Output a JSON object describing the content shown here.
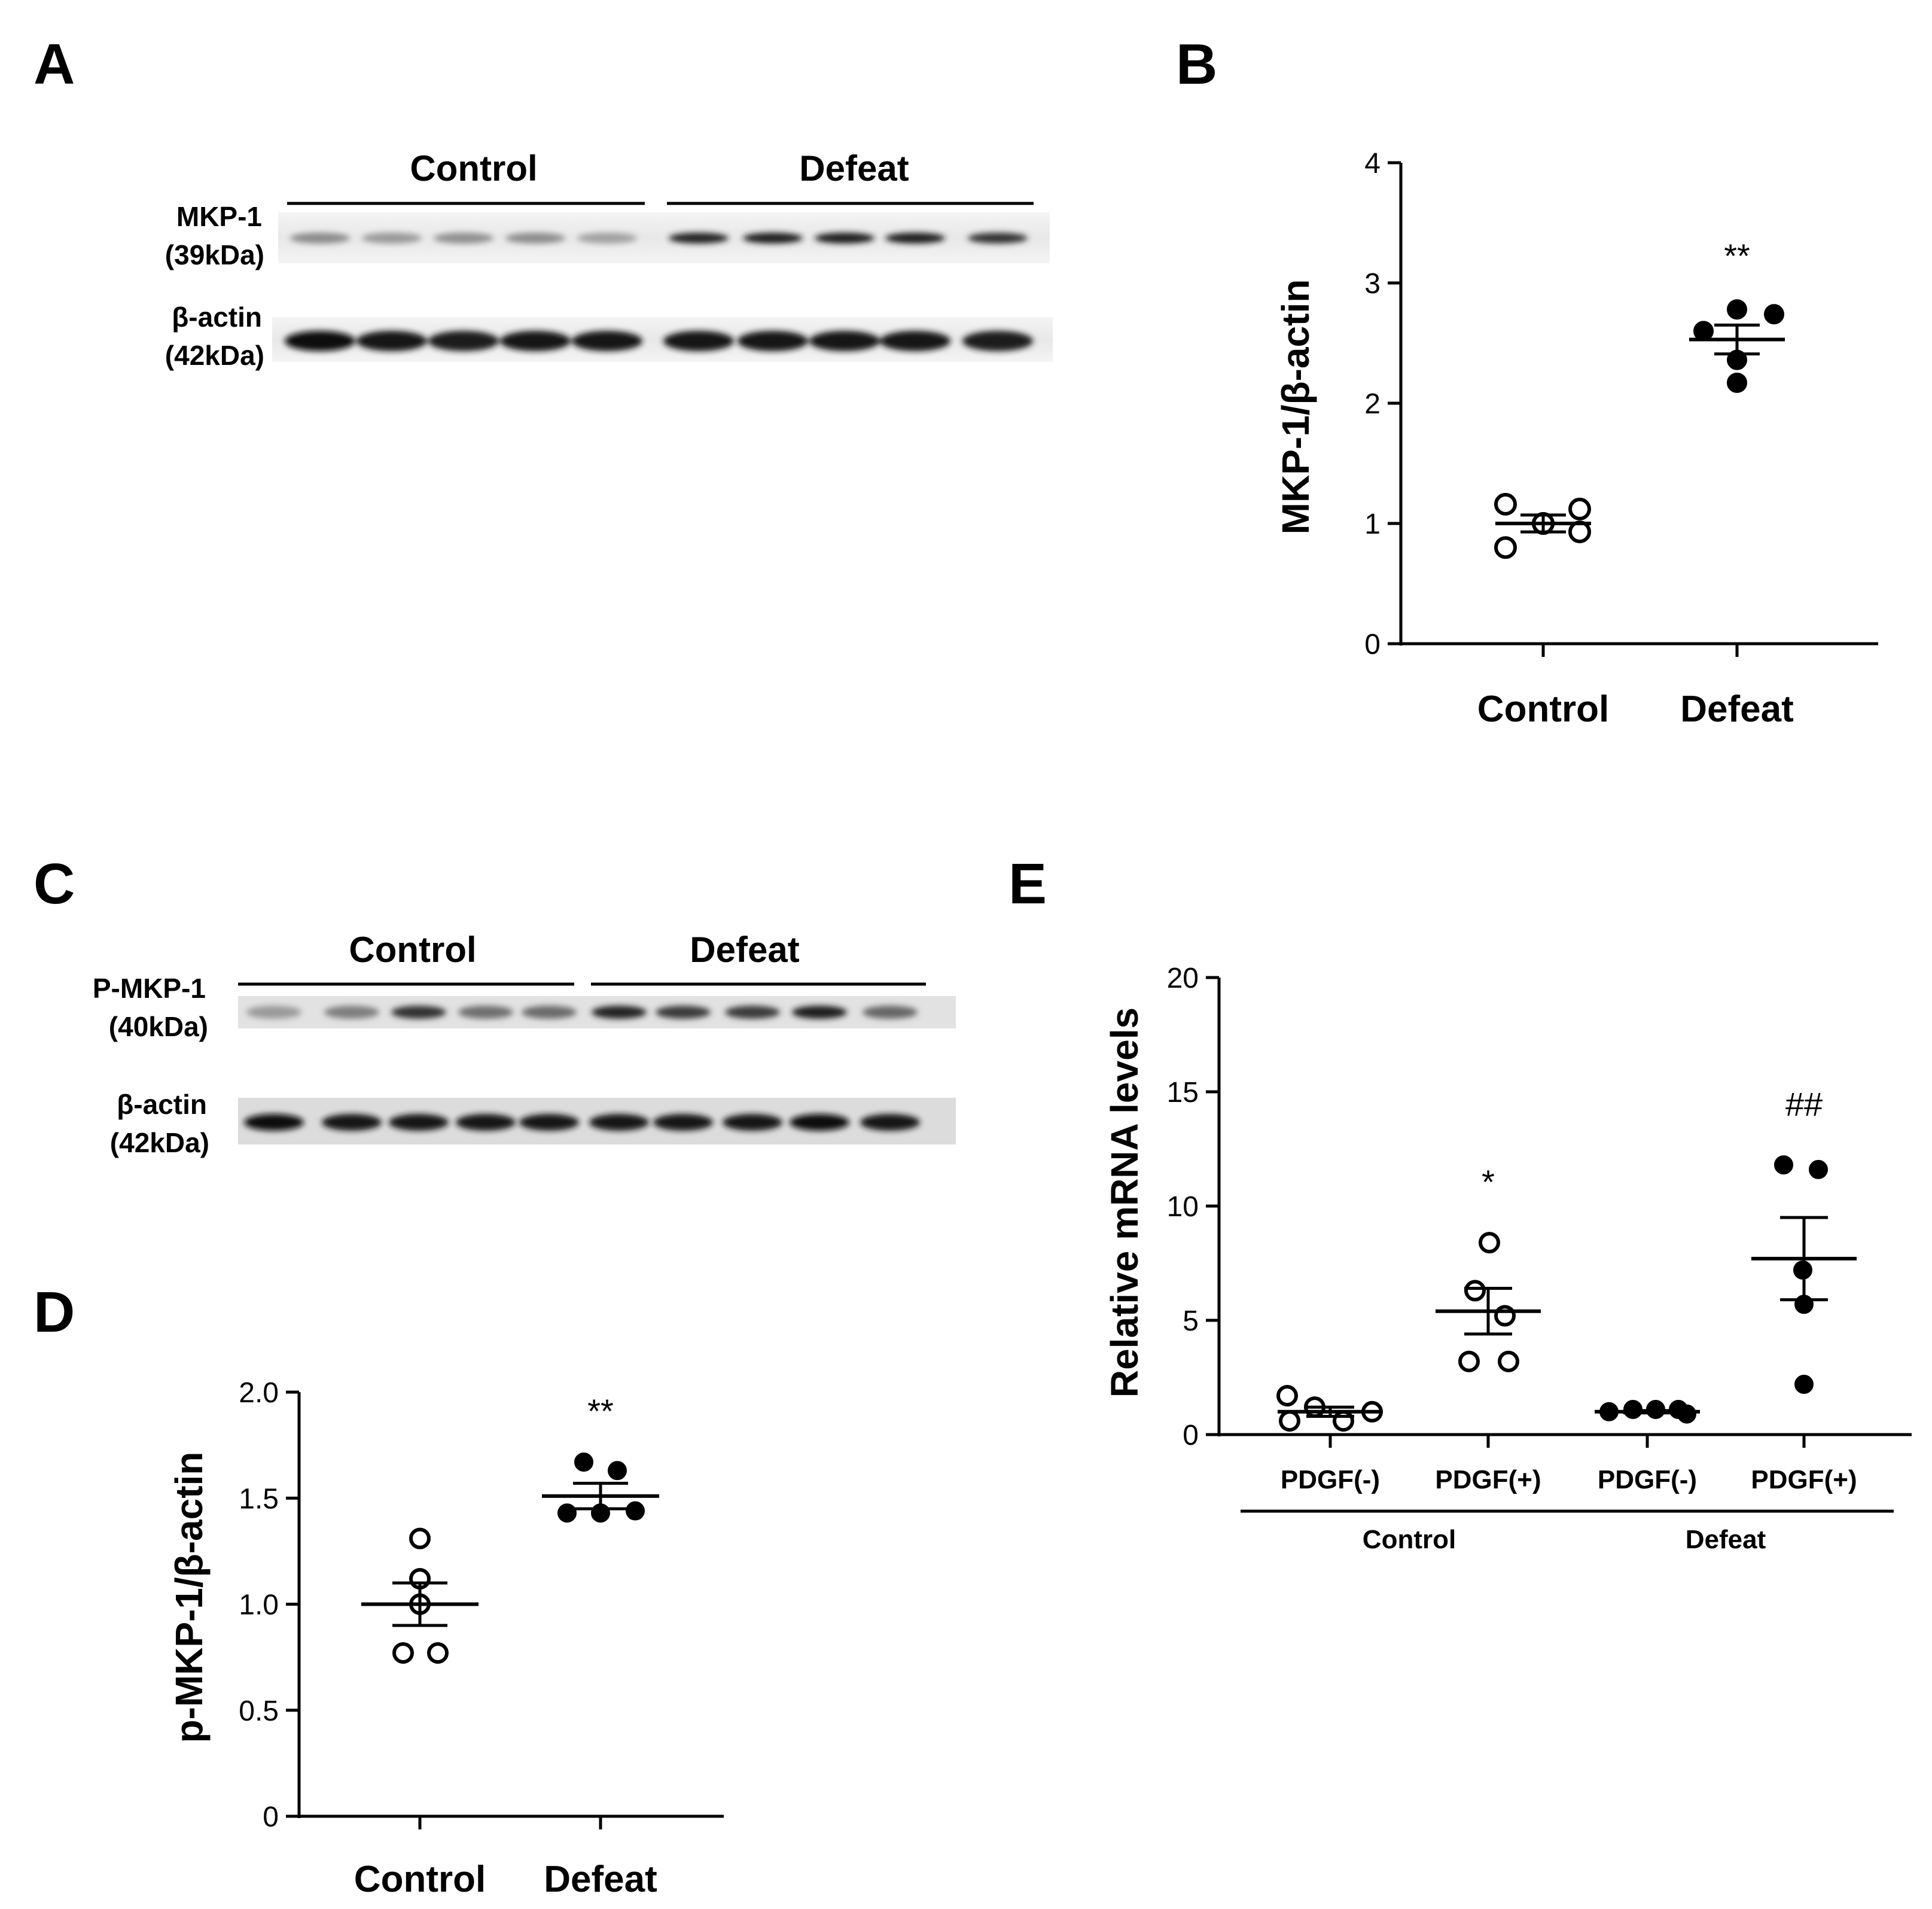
{
  "panels": {
    "A": {
      "letter": "A",
      "groups": [
        "Control",
        "Defeat"
      ],
      "bands": [
        {
          "label_line1": "MKP-1",
          "label_line2": "(39kDa)"
        },
        {
          "label_line1": "β-actin",
          "label_line2": "(42kDa)"
        }
      ]
    },
    "B": {
      "letter": "B"
    },
    "C": {
      "letter": "C",
      "groups": [
        "Control",
        "Defeat"
      ],
      "bands": [
        {
          "label_line1": "P-MKP-1",
          "label_line2": "(40kDa)"
        },
        {
          "label_line1": "β-actin",
          "label_line2": "(42kDa)"
        }
      ]
    },
    "D": {
      "letter": "D"
    },
    "E": {
      "letter": "E"
    }
  },
  "chart_data": [
    {
      "panel": "B",
      "type": "scatter",
      "ylabel": "MKP-1/β-actin",
      "ylim": [
        0,
        4
      ],
      "yticks": [
        "0",
        "1",
        "2",
        "3",
        "4"
      ],
      "categories": [
        "Control",
        "Defeat"
      ],
      "series": [
        {
          "category": "Control",
          "points": [
            0.8,
            1.16,
            1.0,
            1.0,
            1.12,
            0.93
          ],
          "fill": "open",
          "mean": 1.0,
          "sem": 0.07
        },
        {
          "category": "Defeat",
          "points": [
            2.78,
            2.74,
            2.6,
            2.36,
            2.17
          ],
          "fill": "filled",
          "mean": 2.53,
          "sem": 0.12,
          "annotation": "**"
        }
      ]
    },
    {
      "panel": "D",
      "type": "scatter",
      "ylabel": "p-MKP-1/β-actin",
      "ylim": [
        0,
        2.0
      ],
      "yticks": [
        "0",
        "0.5",
        "1.0",
        "1.5",
        "2.0"
      ],
      "categories": [
        "Control",
        "Defeat"
      ],
      "series": [
        {
          "category": "Control",
          "points": [
            1.31,
            1.12,
            1.0,
            0.77,
            0.77
          ],
          "fill": "open",
          "mean": 1.0,
          "sem": 0.1
        },
        {
          "category": "Defeat",
          "points": [
            1.67,
            1.63,
            1.43,
            1.43,
            1.44
          ],
          "fill": "filled",
          "mean": 1.51,
          "sem": 0.06,
          "annotation": "**"
        }
      ]
    },
    {
      "panel": "E",
      "type": "scatter",
      "ylabel": "Relative mRNA levels",
      "ylim": [
        0,
        20
      ],
      "yticks": [
        "0",
        "5",
        "10",
        "15",
        "20"
      ],
      "categories": [
        "PDGF(-)",
        "PDGF(+)",
        "PDGF(-)",
        "PDGF(+)"
      ],
      "groups": [
        {
          "name": "Control",
          "span": [
            0,
            1
          ]
        },
        {
          "name": "Defeat",
          "span": [
            2,
            3
          ]
        }
      ],
      "series": [
        {
          "category_index": 0,
          "points": [
            1.7,
            1.2,
            0.6,
            0.6,
            1.0
          ],
          "fill": "open",
          "mean": 1.0,
          "sem": 0.2
        },
        {
          "category_index": 1,
          "points": [
            8.4,
            6.3,
            5.2,
            3.2,
            3.2
          ],
          "fill": "open",
          "mean": 5.4,
          "sem": 1.0,
          "annotation": "*"
        },
        {
          "category_index": 2,
          "points": [
            1.0,
            1.1,
            1.1,
            1.1,
            0.9
          ],
          "fill": "filled",
          "mean": 1.0,
          "sem": 0.05
        },
        {
          "category_index": 3,
          "points": [
            11.8,
            11.6,
            7.2,
            5.7,
            2.2
          ],
          "fill": "filled",
          "mean": 7.7,
          "sem": 1.8,
          "annotation": "##"
        }
      ]
    }
  ]
}
